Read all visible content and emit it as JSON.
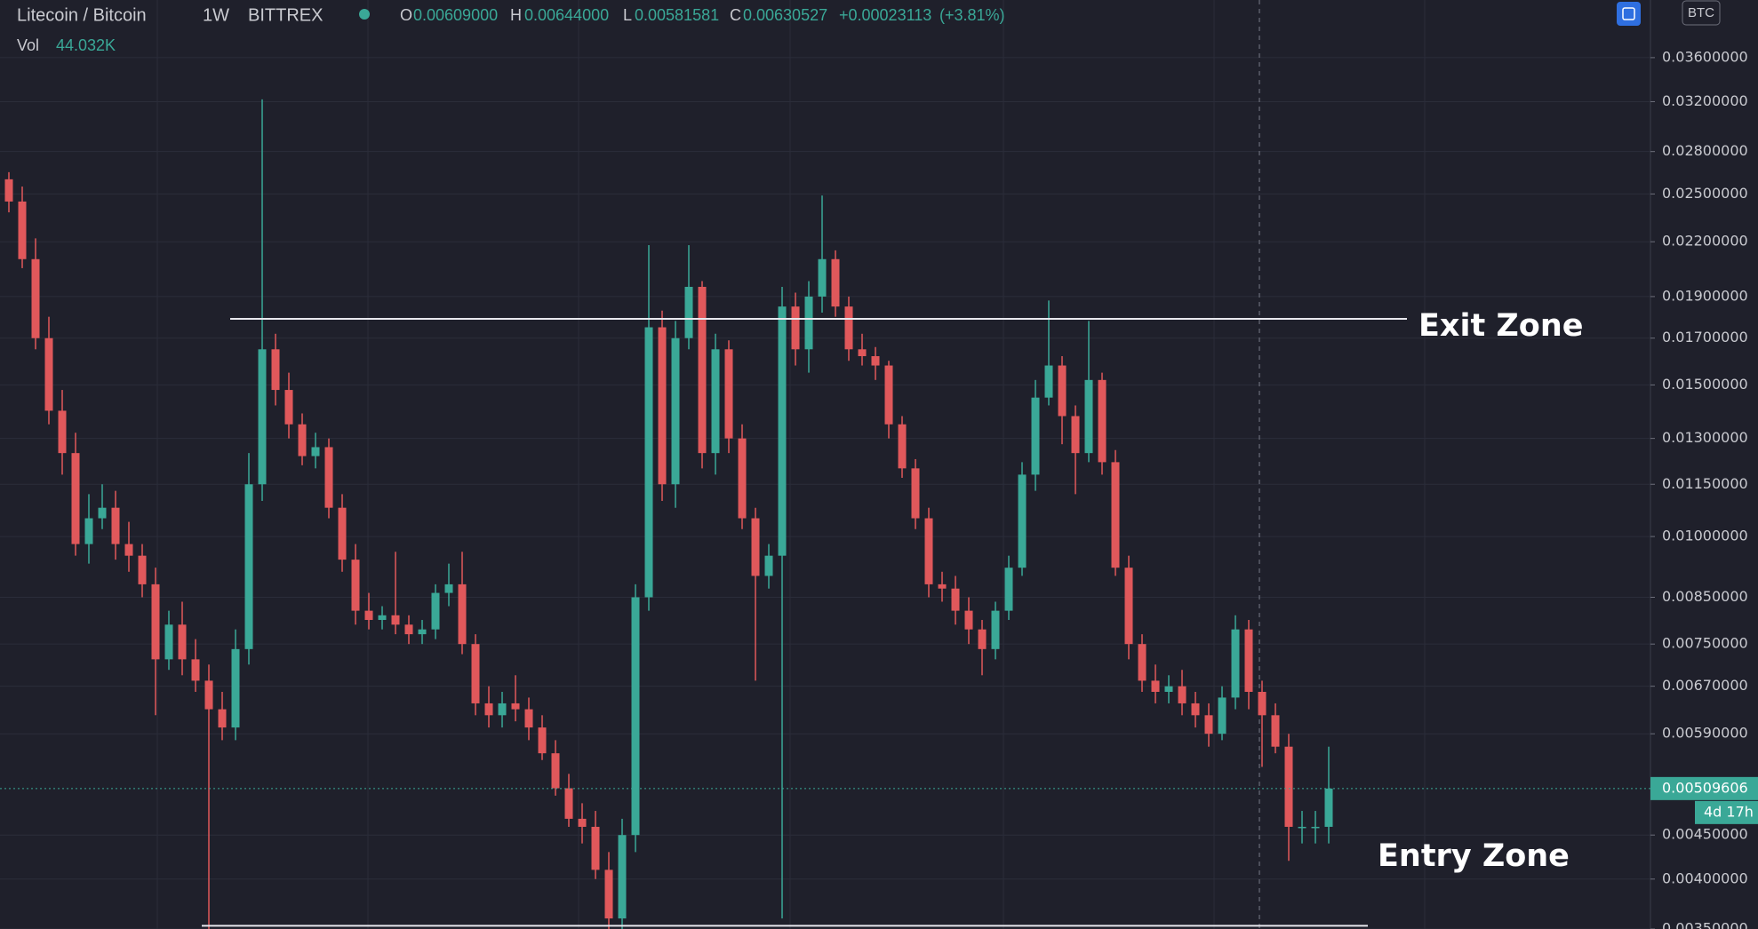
{
  "chart_data": {
    "type": "candlestick",
    "title": "Litecoin / Bitcoin",
    "interval": "1W",
    "exchange": "BITTREX",
    "legend": {
      "o_label": "O",
      "open": {
        "value": 0.00609,
        "label": "0.00609000"
      },
      "h_label": "H",
      "high": {
        "value": 0.00644,
        "label": "0.00644000"
      },
      "l_label": "L",
      "low": {
        "value": 0.00581581,
        "label": "0.00581581"
      },
      "c_label": "C",
      "close": {
        "value": 0.00630527,
        "label": "0.00630527"
      },
      "change": {
        "value": 0.00023113,
        "label": "+0.00023113"
      },
      "change_pct": {
        "value": 3.81,
        "label": "(+3.81%)"
      },
      "vol_label": "Vol",
      "volume": {
        "value": 44032,
        "label": "44.032K"
      }
    },
    "currency": "BTC",
    "log_scale": true,
    "grid": true,
    "up_color": "#3aa897",
    "down_color": "#e0585b",
    "ylim": [
      0.0035,
      0.042
    ],
    "yticks": [
      {
        "value": 0.036,
        "label": "0.03600000"
      },
      {
        "value": 0.032,
        "label": "0.03200000"
      },
      {
        "value": 0.028,
        "label": "0.02800000"
      },
      {
        "value": 0.025,
        "label": "0.02500000"
      },
      {
        "value": 0.022,
        "label": "0.02200000"
      },
      {
        "value": 0.019,
        "label": "0.01900000"
      },
      {
        "value": 0.017,
        "label": "0.01700000"
      },
      {
        "value": 0.015,
        "label": "0.01500000"
      },
      {
        "value": 0.013,
        "label": "0.01300000"
      },
      {
        "value": 0.0115,
        "label": "0.01150000"
      },
      {
        "value": 0.01,
        "label": "0.01000000"
      },
      {
        "value": 0.0085,
        "label": "0.00850000"
      },
      {
        "value": 0.0075,
        "label": "0.00750000"
      },
      {
        "value": 0.0067,
        "label": "0.00670000"
      },
      {
        "value": 0.0059,
        "label": "0.00590000"
      },
      {
        "value": 0.0045,
        "label": "0.00450000"
      },
      {
        "value": 0.004,
        "label": "0.00400000"
      },
      {
        "value": 0.0035,
        "label": "0.00350000"
      }
    ],
    "last_price": {
      "value": 0.00509606,
      "label": "0.00509606"
    },
    "countdown": "4d 17h",
    "levels": [
      {
        "label": "Exit Zone",
        "value": 0.0179
      },
      {
        "label": "Entry Zone",
        "value": 0.00353
      }
    ],
    "open": [
      0.026,
      0.0245,
      0.021,
      0.017,
      0.014,
      0.0125,
      0.0098,
      0.0105,
      0.0108,
      0.0098,
      0.0095,
      0.0088,
      0.0072,
      0.0079,
      0.0072,
      0.0068,
      0.0063,
      0.006,
      0.0074,
      0.0115,
      0.0165,
      0.0148,
      0.0135,
      0.0124,
      0.0127,
      0.0108,
      0.0094,
      0.0082,
      0.008,
      0.0081,
      0.0079,
      0.0077,
      0.0078,
      0.0086,
      0.0088,
      0.0075,
      0.0064,
      0.0062,
      0.0064,
      0.0063,
      0.006,
      0.0056,
      0.0051,
      0.0047,
      0.0046,
      0.0041,
      0.0036,
      0.0045,
      0.0085,
      0.0175,
      0.0115,
      0.017,
      0.0195,
      0.0125,
      0.0165,
      0.013,
      0.0105,
      0.009,
      0.0095,
      0.0185,
      0.0165,
      0.019,
      0.021,
      0.0185,
      0.0165,
      0.0162,
      0.0158,
      0.0135,
      0.012,
      0.0105,
      0.0088,
      0.0087,
      0.0082,
      0.0078,
      0.0074,
      0.0082,
      0.0092,
      0.0118,
      0.0145,
      0.0158,
      0.0138,
      0.0125,
      0.0152,
      0.0122,
      0.0092,
      0.0075,
      0.0068,
      0.0066,
      0.0067,
      0.0064,
      0.0062,
      0.0059,
      0.0065,
      0.0078,
      0.0066,
      0.0062,
      0.0057,
      0.0046,
      0.0046,
      0.0046
    ],
    "high": [
      0.0265,
      0.0255,
      0.0222,
      0.018,
      0.0148,
      0.0132,
      0.0112,
      0.0115,
      0.0113,
      0.0104,
      0.0098,
      0.0092,
      0.0082,
      0.0084,
      0.0076,
      0.0071,
      0.0066,
      0.0078,
      0.0125,
      0.0322,
      0.0172,
      0.0155,
      0.0139,
      0.0132,
      0.013,
      0.0112,
      0.0098,
      0.0086,
      0.0083,
      0.0096,
      0.0081,
      0.008,
      0.0088,
      0.0093,
      0.0096,
      0.0077,
      0.0067,
      0.0066,
      0.0069,
      0.0065,
      0.0062,
      0.0058,
      0.0053,
      0.0049,
      0.0048,
      0.0043,
      0.0047,
      0.0088,
      0.0218,
      0.0183,
      0.0178,
      0.0218,
      0.0198,
      0.0172,
      0.0169,
      0.0135,
      0.0108,
      0.0098,
      0.0195,
      0.0192,
      0.0198,
      0.0249,
      0.0215,
      0.019,
      0.0172,
      0.0166,
      0.016,
      0.0138,
      0.0123,
      0.0108,
      0.0091,
      0.009,
      0.0085,
      0.008,
      0.0084,
      0.0095,
      0.0122,
      0.0152,
      0.0188,
      0.0162,
      0.0142,
      0.0178,
      0.0155,
      0.0126,
      0.0095,
      0.0077,
      0.0071,
      0.0069,
      0.007,
      0.0066,
      0.0064,
      0.0067,
      0.0081,
      0.008,
      0.0068,
      0.0064,
      0.0059,
      0.0048,
      0.0048,
      0.0057
    ],
    "low": [
      0.0238,
      0.0205,
      0.0165,
      0.0135,
      0.0118,
      0.0095,
      0.0093,
      0.0102,
      0.0094,
      0.0091,
      0.0085,
      0.0062,
      0.007,
      0.0069,
      0.0066,
      0.0035,
      0.0058,
      0.0058,
      0.0071,
      0.011,
      0.0142,
      0.013,
      0.0121,
      0.012,
      0.0105,
      0.0091,
      0.0079,
      0.0078,
      0.0078,
      0.0077,
      0.0075,
      0.0075,
      0.0076,
      0.0083,
      0.0073,
      0.0062,
      0.006,
      0.006,
      0.0061,
      0.0058,
      0.0055,
      0.005,
      0.0046,
      0.0044,
      0.004,
      0.0035,
      0.0035,
      0.0043,
      0.0082,
      0.011,
      0.0108,
      0.0165,
      0.012,
      0.0118,
      0.0125,
      0.0102,
      0.0068,
      0.0087,
      0.0036,
      0.0158,
      0.0155,
      0.0182,
      0.018,
      0.016,
      0.0158,
      0.0152,
      0.013,
      0.0117,
      0.0102,
      0.0085,
      0.0084,
      0.0079,
      0.0075,
      0.0069,
      0.0072,
      0.008,
      0.009,
      0.0113,
      0.0142,
      0.0128,
      0.0112,
      0.0122,
      0.0118,
      0.009,
      0.0072,
      0.0066,
      0.0064,
      0.0064,
      0.0062,
      0.006,
      0.0057,
      0.0058,
      0.0063,
      0.0063,
      0.0054,
      0.0056,
      0.0042,
      0.0044,
      0.0044,
      0.0044
    ],
    "close": [
      0.0245,
      0.021,
      0.017,
      0.014,
      0.0125,
      0.0098,
      0.0105,
      0.0108,
      0.0098,
      0.0095,
      0.0088,
      0.0072,
      0.0079,
      0.0072,
      0.0068,
      0.0063,
      0.006,
      0.0074,
      0.0115,
      0.0165,
      0.0148,
      0.0135,
      0.0124,
      0.0127,
      0.0108,
      0.0094,
      0.0082,
      0.008,
      0.0081,
      0.0079,
      0.0077,
      0.0078,
      0.0086,
      0.0088,
      0.0075,
      0.0064,
      0.0062,
      0.0064,
      0.0063,
      0.006,
      0.0056,
      0.0051,
      0.0047,
      0.0046,
      0.0041,
      0.0036,
      0.0045,
      0.0085,
      0.0175,
      0.0115,
      0.017,
      0.0195,
      0.0125,
      0.0165,
      0.013,
      0.0105,
      0.009,
      0.0095,
      0.0185,
      0.0165,
      0.019,
      0.021,
      0.0185,
      0.0165,
      0.0162,
      0.0158,
      0.0135,
      0.012,
      0.0105,
      0.0088,
      0.0087,
      0.0082,
      0.0078,
      0.0074,
      0.0082,
      0.0092,
      0.0118,
      0.0145,
      0.0158,
      0.0138,
      0.0125,
      0.0152,
      0.0122,
      0.0092,
      0.0075,
      0.0068,
      0.0066,
      0.0067,
      0.0064,
      0.0062,
      0.0059,
      0.0065,
      0.0078,
      0.0066,
      0.0062,
      0.0057,
      0.0046,
      0.0046,
      0.0046,
      0.005096
    ]
  }
}
